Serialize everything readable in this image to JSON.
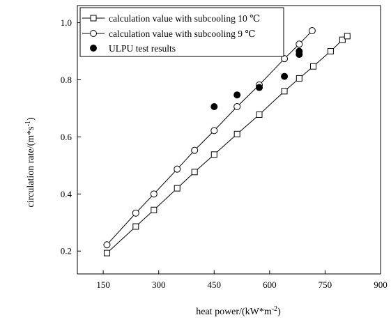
{
  "chart_data": {
    "type": "scatter",
    "title": "",
    "xlabel": {
      "base": "heat power/(kW*m",
      "sup": "-2",
      "tail": ")"
    },
    "ylabel": {
      "base": "circulation rate/(m*s",
      "sup": "-1",
      "tail": ")"
    },
    "xlim": [
      80,
      900
    ],
    "ylim": [
      0.12,
      1.06
    ],
    "xticks": [
      150,
      300,
      450,
      600,
      750,
      900
    ],
    "yticks": [
      0.2,
      0.4,
      0.6,
      0.8,
      1.0
    ],
    "xtick_labels": [
      "150",
      "300",
      "450",
      "600",
      "750",
      "900"
    ],
    "ytick_labels": [
      "0.2",
      "0.4",
      "0.6",
      "0.8",
      "1.0"
    ],
    "legend_position": "top-left",
    "grid": false,
    "series": [
      {
        "name": "calculation value with subcooling 10 ℃",
        "marker": "open-square",
        "line": true,
        "x": [
          160,
          238,
          287,
          350,
          397,
          450,
          512,
          572,
          640,
          680,
          718,
          765,
          797,
          810
        ],
        "y": [
          0.193,
          0.286,
          0.344,
          0.42,
          0.477,
          0.538,
          0.61,
          0.678,
          0.76,
          0.805,
          0.847,
          0.9,
          0.94,
          0.953
        ]
      },
      {
        "name": "calculation value with subcooling 9 ℃",
        "marker": "open-circle",
        "line": true,
        "x": [
          160,
          238,
          287,
          350,
          397,
          450,
          512,
          572,
          640,
          680,
          715
        ],
        "y": [
          0.222,
          0.333,
          0.4,
          0.487,
          0.553,
          0.622,
          0.706,
          0.782,
          0.874,
          0.925,
          0.972
        ]
      },
      {
        "name": "ULPU test results",
        "marker": "filled-circle",
        "line": false,
        "x": [
          450,
          512,
          572,
          640,
          680,
          680
        ],
        "y": [
          0.706,
          0.747,
          0.773,
          0.812,
          0.889,
          0.9
        ]
      }
    ]
  }
}
